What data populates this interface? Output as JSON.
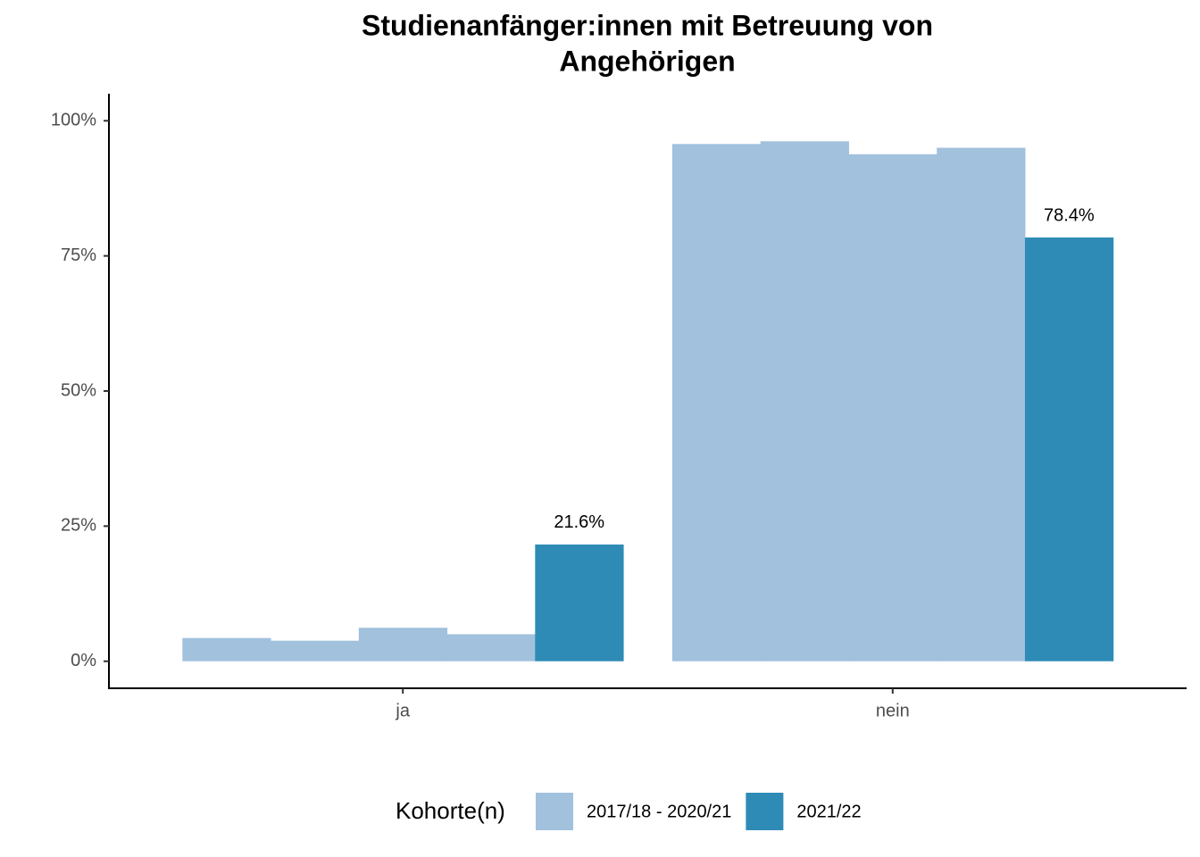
{
  "chart_data": {
    "type": "bar",
    "title": [
      "Studienanfänger:innen mit Betreuung von",
      "Angehörigen"
    ],
    "categories": [
      "ja",
      "nein"
    ],
    "series": [
      {
        "name": "2017/18 - 2020/21",
        "color": "#a1c1dd",
        "values": [
          [
            4.3,
            3.8,
            6.2,
            5.0
          ],
          [
            95.7,
            96.2,
            93.8,
            95.0
          ]
        ]
      },
      {
        "name": "2021/22",
        "color": "#2e8bb6",
        "values": [
          21.6,
          78.4
        ],
        "value_labels": [
          "21.6%",
          "78.4%"
        ]
      }
    ],
    "ylim": [
      -5,
      105
    ],
    "yticks": [
      {
        "value": 0,
        "label": "0%"
      },
      {
        "value": 25,
        "label": "25%"
      },
      {
        "value": 50,
        "label": "50%"
      },
      {
        "value": 75,
        "label": "75%"
      },
      {
        "value": 100,
        "label": "100%"
      }
    ],
    "legend_title": "Kohorte(n)",
    "legend_position": "bottom",
    "grid": false
  }
}
